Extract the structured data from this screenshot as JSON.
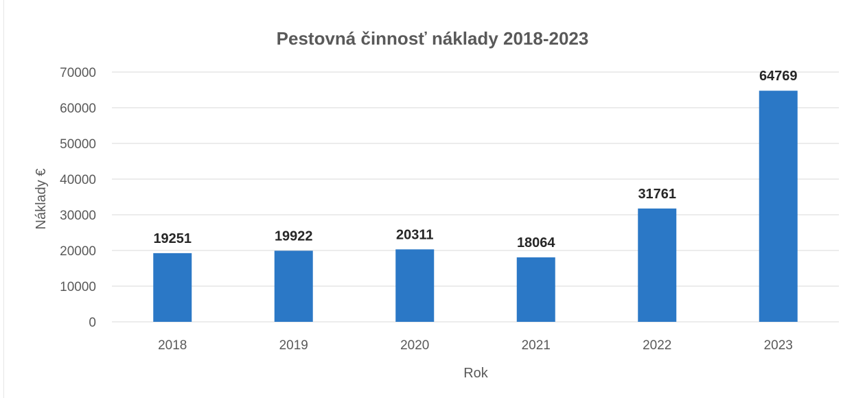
{
  "chart_data": {
    "type": "bar",
    "title": "Pestovná činnosť náklady 2018-2023",
    "xlabel": "Rok",
    "ylabel": "Náklady €",
    "categories": [
      "2018",
      "2019",
      "2020",
      "2021",
      "2022",
      "2023"
    ],
    "values": [
      19251,
      19922,
      20311,
      18064,
      31761,
      64769
    ],
    "data_labels": [
      "19251",
      "19922",
      "20311",
      "18064",
      "31761",
      "64769"
    ],
    "ylim": [
      0,
      70000
    ],
    "y_ticks": [
      "0",
      "10000",
      "20000",
      "30000",
      "40000",
      "50000",
      "60000",
      "70000"
    ],
    "grid": true,
    "legend": false,
    "colors": {
      "bar": "#2b78c6",
      "title": "#595959",
      "tick": "#595959",
      "data_label": "#262626",
      "grid": "#d9d9d9"
    }
  }
}
